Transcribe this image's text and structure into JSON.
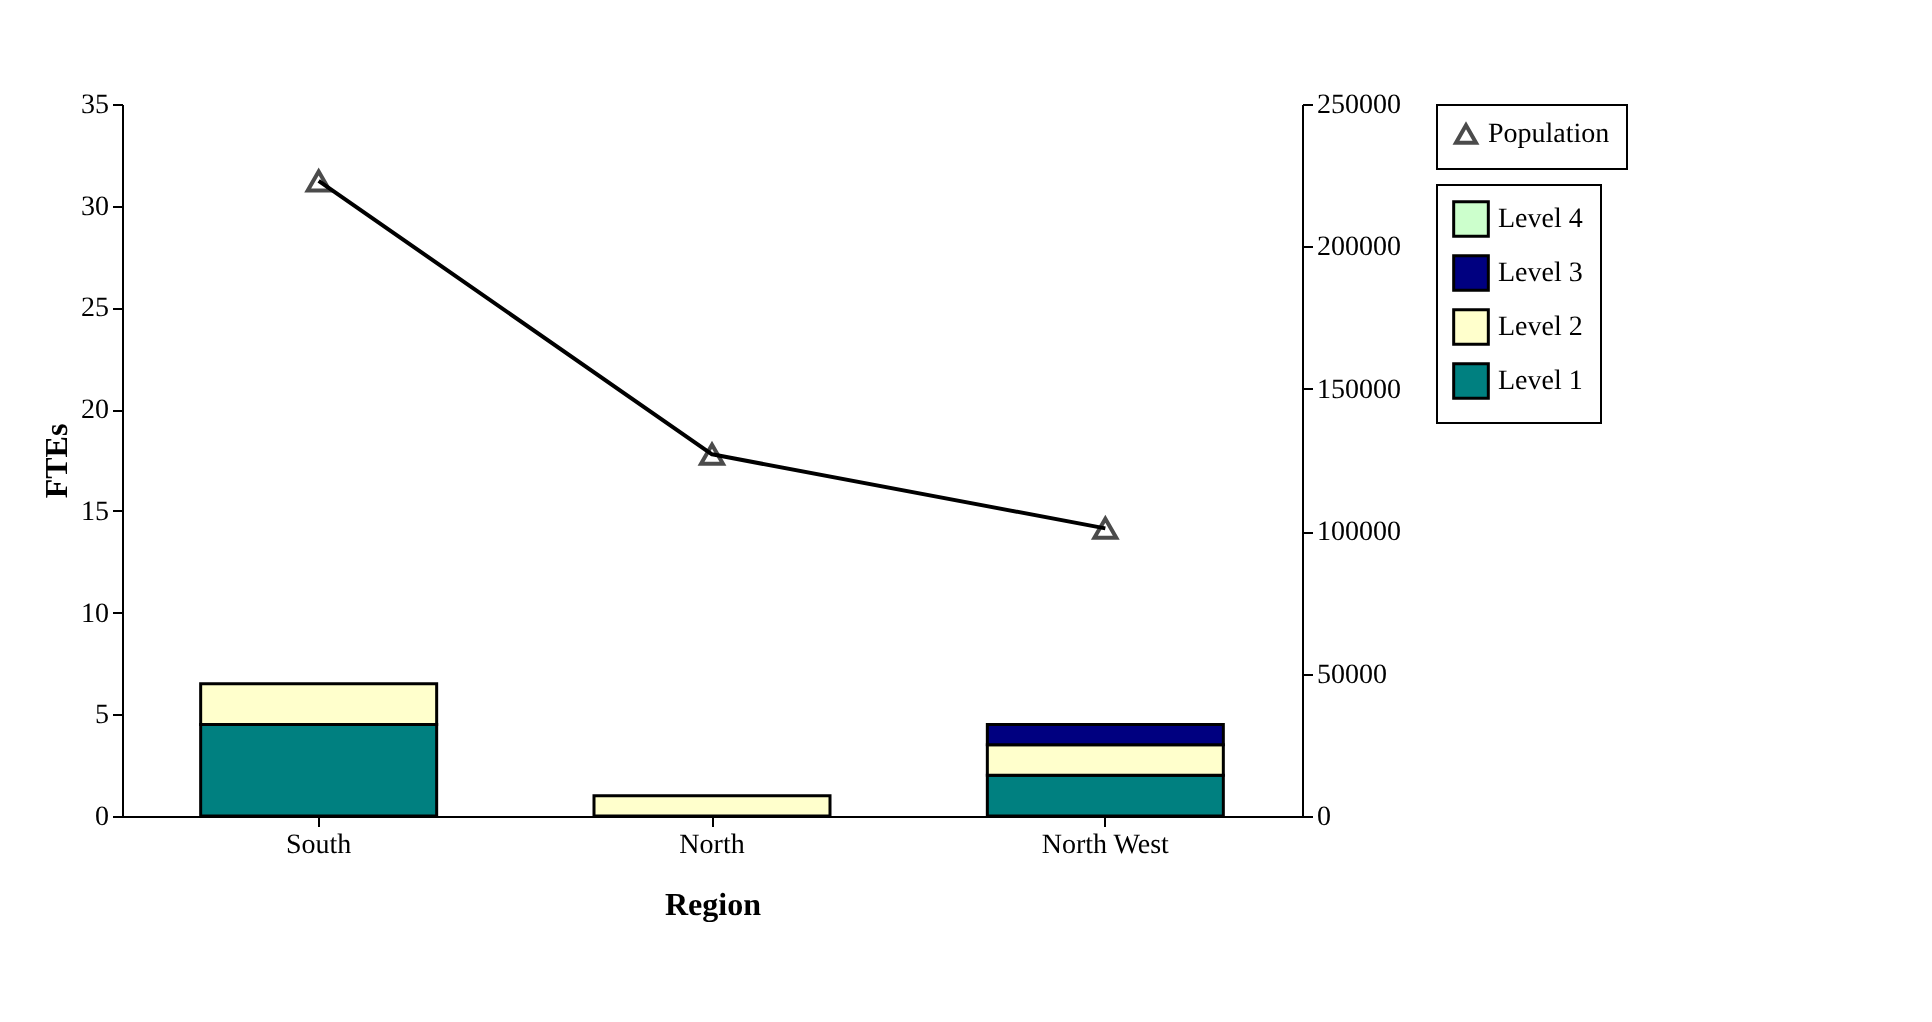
{
  "chart_data": {
    "type": "bar",
    "stacked": true,
    "xlabel": "Region",
    "ylabel": "FTEs",
    "categories": [
      "South",
      "North",
      "North West"
    ],
    "series": [
      {
        "name": "Level 1",
        "color": "#008080",
        "values": [
          4.5,
          0,
          2
        ]
      },
      {
        "name": "Level 2",
        "color": "#ffffcc",
        "values": [
          2,
          1,
          1.5
        ]
      },
      {
        "name": "Level 3",
        "color": "#000080",
        "values": [
          0,
          0,
          1
        ]
      },
      {
        "name": "Level 4",
        "color": "#ccffcc",
        "values": [
          0,
          0,
          0
        ]
      },
      {
        "name": "Population",
        "type": "line",
        "axis": "y2",
        "color": "#000000",
        "marker": "triangle",
        "values": [
          223000,
          127000,
          101000
        ]
      }
    ],
    "ylim": [
      0,
      35
    ],
    "yticks": [
      0,
      5,
      10,
      15,
      20,
      25,
      30,
      35
    ],
    "y2lim": [
      0,
      250000
    ],
    "y2ticks": [
      0,
      50000,
      100000,
      150000,
      200000,
      250000
    ],
    "grid": false,
    "legend": "right"
  }
}
